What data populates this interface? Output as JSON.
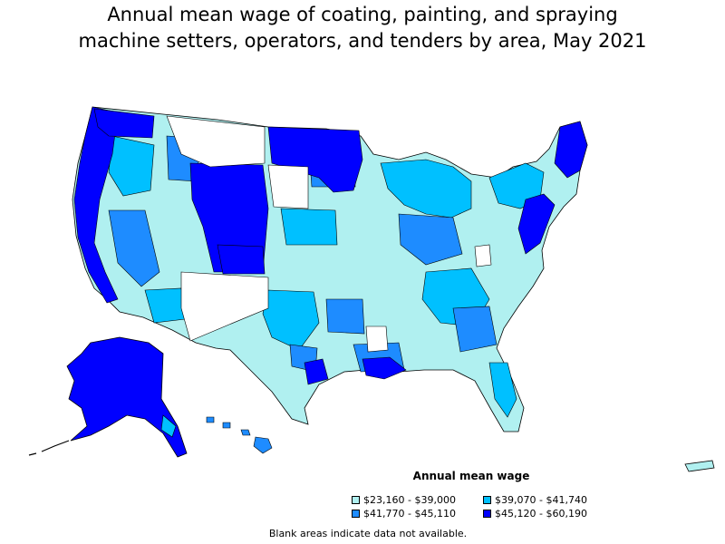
{
  "title": {
    "line1": "Annual mean wage of coating, painting, and spraying",
    "line2": "machine setters, operators, and tenders by area, May 2021"
  },
  "legend": {
    "title": "Annual mean wage",
    "items": [
      {
        "label": "$23,160 - $39,000",
        "color": "#b0f0f0"
      },
      {
        "label": "$39,070 - $41,740",
        "color": "#00c0ff"
      },
      {
        "label": "$41,770 - $45,110",
        "color": "#1e8cff"
      },
      {
        "label": "$45,120 - $60,190",
        "color": "#0000ff"
      }
    ]
  },
  "footnote": "Blank areas indicate data not available.",
  "colors": {
    "blank": "#ffffff",
    "border": "#000000"
  }
}
